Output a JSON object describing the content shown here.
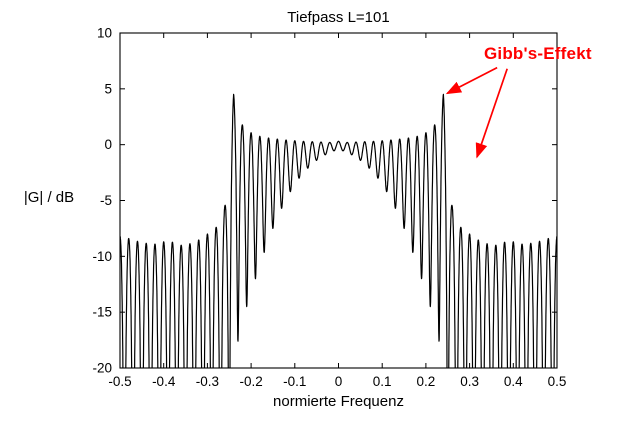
{
  "chart_data": {
    "type": "line",
    "title": "Tiefpass L=101",
    "xlabel": "normierte Frequenz",
    "ylabel": "|G| / dB",
    "xlim": [
      -0.5,
      0.5
    ],
    "ylim": [
      -20,
      10
    ],
    "grid": false,
    "background": "#ffffff",
    "axis_color": "#000000",
    "curve_color": "#000000",
    "xticks": [
      -0.5,
      -0.4,
      -0.3,
      -0.2,
      -0.1,
      0,
      0.1,
      0.2,
      0.3,
      0.4,
      0.5
    ],
    "xtick_labels": [
      "-0.5",
      "-0.4",
      "-0.3",
      "-0.2",
      "-0.1",
      "0",
      "0.1",
      "0.2",
      "0.3",
      "0.4",
      "0.5"
    ],
    "yticks": [
      10,
      5,
      0,
      -5,
      -10,
      -15,
      -20
    ],
    "ytick_labels": [
      "10",
      "5",
      "0",
      "-5",
      "-10",
      "-15",
      "-20"
    ],
    "curve": {
      "name": "|G| magnitude response",
      "generator": "envelope-cosine-ripple",
      "filter_type": "FIR lowpass, Gibbs ripple",
      "L": 101,
      "cutoff": 0.25,
      "ripple_period": 0.02,
      "clip_db": -20,
      "top_envelope_db": [
        [
          0,
          0.3
        ],
        [
          0.02,
          0.2
        ],
        [
          0.05,
          0.25
        ],
        [
          0.08,
          0.3
        ],
        [
          0.11,
          0.38
        ],
        [
          0.14,
          0.5
        ],
        [
          0.17,
          0.65
        ],
        [
          0.19,
          0.85
        ],
        [
          0.21,
          1.3
        ],
        [
          0.225,
          2.0
        ],
        [
          0.235,
          3.2
        ],
        [
          0.24,
          4.5
        ],
        [
          0.244,
          2.2
        ],
        [
          0.248,
          0.3
        ],
        [
          0.252,
          -2.5
        ],
        [
          0.256,
          -4.5
        ],
        [
          0.26,
          -5.5
        ],
        [
          0.27,
          -6.8
        ],
        [
          0.28,
          -7.4
        ],
        [
          0.3,
          -8.0
        ],
        [
          0.33,
          -8.8
        ],
        [
          0.36,
          -9.0
        ],
        [
          0.39,
          -8.6
        ],
        [
          0.42,
          -8.9
        ],
        [
          0.45,
          -8.8
        ],
        [
          0.47,
          -8.5
        ],
        [
          0.5,
          -8.2
        ]
      ],
      "bottom_envelope_db": [
        [
          0,
          -0.4
        ],
        [
          0.02,
          -0.7
        ],
        [
          0.04,
          -1.1
        ],
        [
          0.06,
          -1.7
        ],
        [
          0.08,
          -2.5
        ],
        [
          0.1,
          -3.5
        ],
        [
          0.12,
          -4.9
        ],
        [
          0.14,
          -6.5
        ],
        [
          0.16,
          -8.5
        ],
        [
          0.18,
          -10.8
        ],
        [
          0.2,
          -13.2
        ],
        [
          0.22,
          -15.8
        ],
        [
          0.235,
          -18.5
        ],
        [
          0.245,
          -24
        ],
        [
          0.25,
          -32
        ],
        [
          0.255,
          -45
        ],
        [
          0.5,
          -45
        ]
      ],
      "key_points": {
        "passband": [
          -0.25,
          0.25
        ],
        "overshoot_peak_db": 4.5,
        "overshoot_peak_freqs": [
          -0.24,
          0.24
        ],
        "typical_stopband_lobe_db": -8.5
      }
    },
    "annotation": {
      "text": "Gibb's-Effekt",
      "color": "#ff0000",
      "arrows": [
        {
          "from_f": 0.363,
          "from_db": 6.9,
          "to_f": 0.249,
          "to_db": 4.6
        },
        {
          "from_f": 0.386,
          "from_db": 6.8,
          "to_f": 0.317,
          "to_db": -1.1
        }
      ]
    }
  }
}
